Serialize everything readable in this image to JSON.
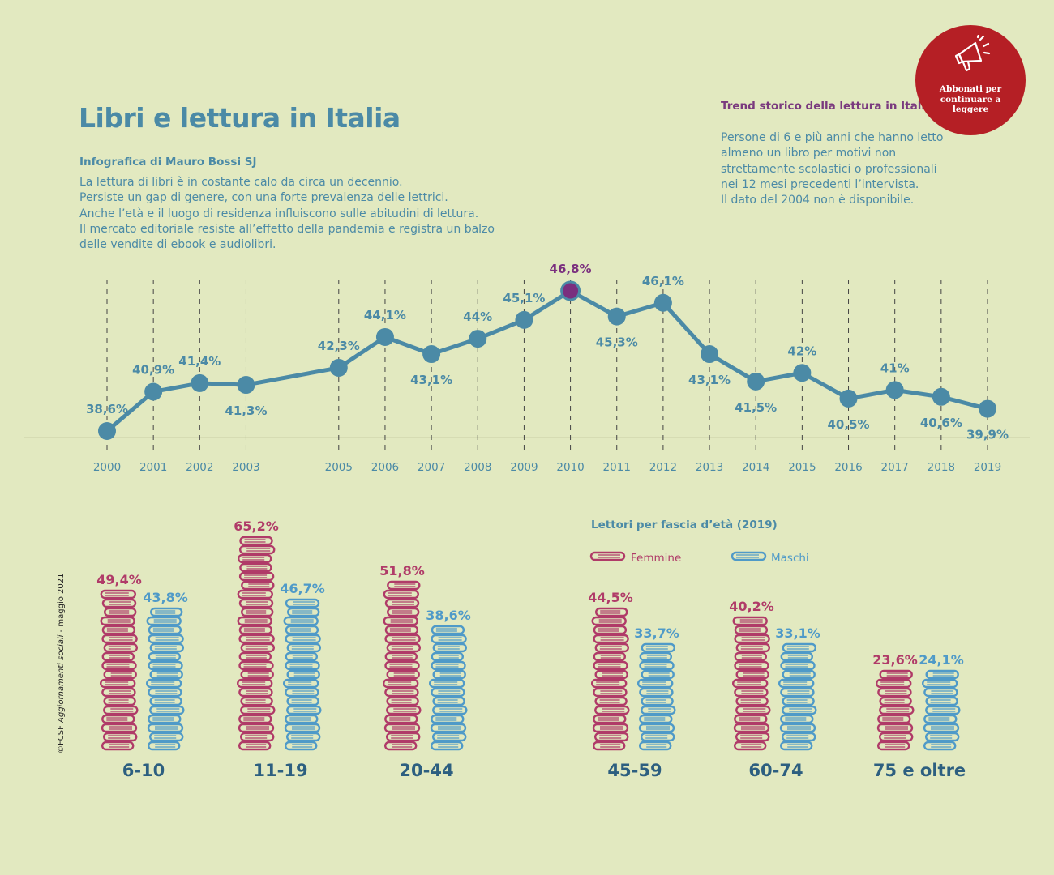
{
  "header": {
    "title": "Libri e lettura in Italia",
    "author": "Infografica di Mauro Bossi SJ",
    "intro_lines": [
      "La lettura di libri è in costante calo da circa un decennio.",
      "Persiste un gap di genere, con una forte prevalenza delle lettrici.",
      "Anche l’età e il luogo di residenza influiscono sulle abitudini di lettura.",
      "Il mercato editoriale resiste all’effetto della pandemia e registra un balzo",
      "delle vendite di ebook e audiolibri."
    ]
  },
  "trend": {
    "title": "Trend storico della lettura in Italia",
    "description_lines": [
      "Persone di 6 e più anni che hanno letto",
      "almeno un libro per motivi non",
      "strettamente scolastici o professionali",
      "nei 12 mesi precedenti l’intervista.",
      "Il dato del 2004 non è disponibile."
    ]
  },
  "badge": {
    "text": "Abbonati per\ncontinuare a\nleggere",
    "icon": "megaphone-icon",
    "color": "#b51f25"
  },
  "credit": {
    "prefix": "©FCSF ",
    "source": "Aggiornamenti sociali",
    "suffix": " - maggio 2021"
  },
  "colors": {
    "line": "#4b8aa6",
    "highlight": "#7a2f7e",
    "femmine": "#b03b68",
    "maschi": "#4f9ac8",
    "axis": "#444444"
  },
  "chart_data": [
    {
      "type": "line",
      "title": "Trend storico della lettura in Italia",
      "x": [
        "2000",
        "2001",
        "2002",
        "2003",
        "2005",
        "2006",
        "2007",
        "2008",
        "2009",
        "2010",
        "2011",
        "2012",
        "2013",
        "2014",
        "2015",
        "2016",
        "2017",
        "2018",
        "2019"
      ],
      "values": [
        38.6,
        40.9,
        41.4,
        41.3,
        42.3,
        44.1,
        43.1,
        44,
        45.1,
        46.8,
        45.3,
        46.1,
        43.1,
        41.5,
        42,
        40.5,
        41,
        40.6,
        39.9
      ],
      "labels": [
        "38,6%",
        "40,9%",
        "41,4%",
        "41,3%",
        "42,3%",
        "44,1%",
        "43,1%",
        "44%",
        "45,1%",
        "46,8%",
        "45,3%",
        "46,1%",
        "43,1%",
        "41,5%",
        "42%",
        "40,5%",
        "41%",
        "40,6%",
        "39,9%"
      ],
      "highlight": "2010",
      "grid": "vertical dashed lines"
    },
    {
      "type": "bar",
      "title": "Lettori per fascia d’età (2019)",
      "categories": [
        "6-10",
        "11-19",
        "20-44",
        "45-59",
        "60-74",
        "75 e oltre"
      ],
      "series": [
        {
          "name": "Femmine",
          "values": [
            49.4,
            65.2,
            51.8,
            44.5,
            40.2,
            23.6
          ],
          "labels": [
            "49,4%",
            "65,2%",
            "51,8%",
            "44,5%",
            "40,2%",
            "23,6%"
          ]
        },
        {
          "name": "Maschi",
          "values": [
            43.8,
            46.7,
            38.6,
            33.7,
            33.1,
            24.1
          ],
          "labels": [
            "43,8%",
            "46,7%",
            "38,6%",
            "33,7%",
            "33,1%",
            "24,1%"
          ]
        }
      ],
      "legend": "top"
    }
  ]
}
